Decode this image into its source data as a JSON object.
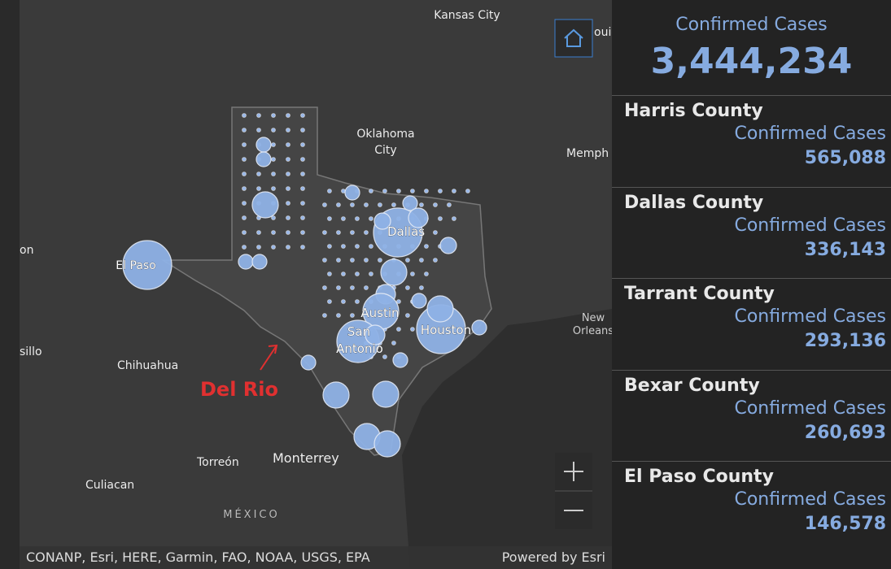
{
  "header": {
    "title": "Confirmed Cases",
    "total": "3,444,234"
  },
  "counties": [
    {
      "name": "Harris County",
      "label": "Confirmed Cases",
      "value": "565,088"
    },
    {
      "name": "Dallas County",
      "label": "Confirmed Cases",
      "value": "336,143"
    },
    {
      "name": "Tarrant County",
      "label": "Confirmed Cases",
      "value": "293,136"
    },
    {
      "name": "Bexar County",
      "label": "Confirmed Cases",
      "value": "260,693"
    },
    {
      "name": "El Paso County",
      "label": "Confirmed Cases",
      "value": "146,578"
    }
  ],
  "map": {
    "labels": [
      "Kansas City",
      "Oklahoma",
      "City",
      "Memph",
      "ouis",
      "on",
      "sillo",
      "Chihuahua",
      "Torreón",
      "Monterrey",
      "Culiacan",
      "MÉXICO",
      "New",
      "Orleans",
      "El Paso",
      "Dallas",
      "Austin",
      "San",
      "Antonio",
      "Houston"
    ],
    "annotation": "Del Rio",
    "attribution": "CONANP, Esri, HERE, Garmin, FAO, NOAA, USGS, EPA",
    "powered": "Powered by Esri"
  }
}
